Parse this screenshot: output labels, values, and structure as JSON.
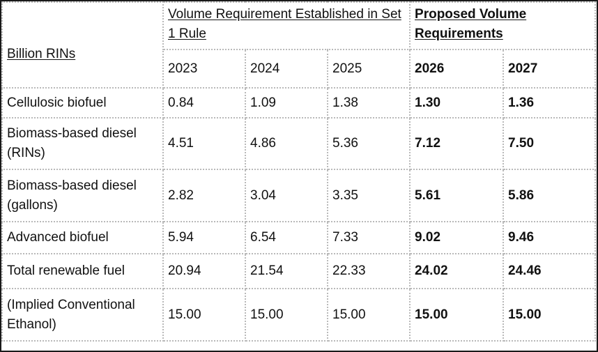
{
  "table": {
    "corner_label": "Billion RINs",
    "group_headers": [
      {
        "label": "Volume Requirement Established in Set 1 Rule"
      },
      {
        "label": "Proposed Volume Requirements"
      }
    ],
    "years": [
      "2023",
      "2024",
      "2025",
      "2026",
      "2027"
    ],
    "rows": [
      {
        "label": "Cellulosic biofuel",
        "values": [
          "0.84",
          "1.09",
          "1.38",
          "1.30",
          "1.36"
        ]
      },
      {
        "label": "Biomass-based diesel (RINs)",
        "values": [
          "4.51",
          "4.86",
          "5.36",
          "7.12",
          "7.50"
        ]
      },
      {
        "label": "Biomass-based diesel (gallons)",
        "values": [
          "2.82",
          "3.04",
          "3.35",
          "5.61",
          "5.86"
        ]
      },
      {
        "label": "Advanced biofuel",
        "values": [
          "5.94",
          "6.54",
          "7.33",
          "9.02",
          "9.46"
        ]
      },
      {
        "label": "Total renewable fuel",
        "values": [
          "20.94",
          "21.54",
          "22.33",
          "24.02",
          "24.46"
        ]
      },
      {
        "label": "(Implied Conventional Ethanol)",
        "values": [
          "15.00",
          "15.00",
          "15.00",
          "15.00",
          "15.00"
        ]
      }
    ]
  }
}
